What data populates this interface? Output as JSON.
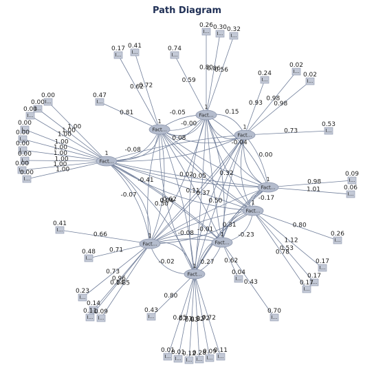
{
  "title": "Path Diagram",
  "factor_label": "Fact...",
  "indicator_label": "I...",
  "factors": [
    {
      "id": "f1",
      "one": "1"
    },
    {
      "id": "f2",
      "one": "1"
    },
    {
      "id": "f3",
      "one": "1"
    },
    {
      "id": "f4",
      "one": "1"
    },
    {
      "id": "f5",
      "one": "1"
    },
    {
      "id": "f6",
      "one": "1"
    },
    {
      "id": "f7",
      "one": "1"
    },
    {
      "id": "f8",
      "one": "1"
    },
    {
      "id": "f9",
      "one": "1"
    }
  ],
  "indicators": [
    {
      "id": "i1",
      "factor": "f1",
      "var": "0.00",
      "load": "1.00"
    },
    {
      "id": "i2",
      "factor": "f1",
      "var": "0.00",
      "load": "1.00"
    },
    {
      "id": "i3",
      "factor": "f1",
      "var": "0.00",
      "load": "1.00"
    },
    {
      "id": "i4",
      "factor": "f1",
      "var": "0.00",
      "load": "1.00"
    },
    {
      "id": "i5",
      "factor": "f1",
      "var": "0.00",
      "load": "1.00"
    },
    {
      "id": "i6",
      "factor": "f1",
      "var": "0.00",
      "load": "1.00"
    },
    {
      "id": "i7",
      "factor": "f1",
      "var": "0.00",
      "load": "1.00"
    },
    {
      "id": "i8",
      "factor": "f1",
      "var": "0.00",
      "load": "1.00"
    },
    {
      "id": "i9",
      "factor": "f1",
      "var": "0.00",
      "load": "1.00"
    },
    {
      "id": "i10",
      "factor": "f2",
      "var": "0.47",
      "load": "0.81"
    },
    {
      "id": "i11",
      "factor": "f2",
      "var": "0.17",
      "load": "0.62"
    },
    {
      "id": "i12",
      "factor": "f2",
      "var": "0.41",
      "load": "0.72"
    },
    {
      "id": "i13",
      "factor": "f3",
      "var": "0.74",
      "load": "0.59"
    },
    {
      "id": "i14",
      "factor": "f3",
      "var": "0.26",
      "load": "0.80"
    },
    {
      "id": "i15",
      "factor": "f3",
      "var": "0.30",
      "load": "0.86"
    },
    {
      "id": "i16",
      "factor": "f3",
      "var": "0.32",
      "load": "0.56"
    },
    {
      "id": "i17",
      "factor": "f4",
      "var": "0.24",
      "load": "0.93"
    },
    {
      "id": "i18",
      "factor": "f4",
      "var": "0.02",
      "load": "0.98"
    },
    {
      "id": "i19",
      "factor": "f4",
      "var": "0.02",
      "load": "0.98"
    },
    {
      "id": "i20",
      "factor": "f4",
      "var": "0.53",
      "load": "0.73"
    },
    {
      "id": "i21",
      "factor": "f5",
      "var": "0.09",
      "load": "0.98"
    },
    {
      "id": "i22",
      "factor": "f5",
      "var": "0.06",
      "load": "1.01"
    },
    {
      "id": "i23",
      "factor": "f6",
      "var": "0.26",
      "load": "0.80"
    },
    {
      "id": "i24",
      "factor": "f6",
      "var": "0.17",
      "load": "1.12"
    },
    {
      "id": "i25",
      "factor": "f6",
      "var": "0.17",
      "load": "0.53"
    },
    {
      "id": "i26",
      "factor": "f6",
      "var": "0.17",
      "load": "0.78"
    },
    {
      "id": "i27",
      "factor": "f7",
      "var": "0.04",
      "load": "0.62"
    },
    {
      "id": "i28",
      "factor": "f7",
      "var": "0.70",
      "load": "0.43"
    },
    {
      "id": "i29",
      "factor": "f8",
      "var": "0.41",
      "load": "0.66"
    },
    {
      "id": "i30",
      "factor": "f8",
      "var": "0.48",
      "load": "0.71"
    },
    {
      "id": "i31",
      "factor": "f8",
      "var": "0.23",
      "load": "0.73"
    },
    {
      "id": "i32",
      "factor": "f8",
      "var": "0.14",
      "load": "0.96"
    },
    {
      "id": "i33",
      "factor": "f8",
      "var": "0.09",
      "load": "0.85"
    },
    {
      "id": "i34",
      "factor": "f8",
      "var": "0.11",
      "load": "0.14"
    },
    {
      "id": "i35",
      "factor": "f9",
      "var": "0.43",
      "load": "0.80"
    },
    {
      "id": "i36",
      "factor": "f9",
      "var": "0.01",
      "load": "0.85"
    },
    {
      "id": "i37",
      "factor": "f9",
      "var": "0.01",
      "load": "0.71"
    },
    {
      "id": "i38",
      "factor": "f9",
      "var": "0.12",
      "load": "0.83"
    },
    {
      "id": "i39",
      "factor": "f9",
      "var": "0.28",
      "load": "0.82"
    },
    {
      "id": "i40",
      "factor": "f9",
      "var": "0.09",
      "load": "0.72"
    },
    {
      "id": "i41",
      "factor": "f9",
      "var": "0.11",
      "load": "0.72"
    }
  ],
  "paths": [
    {
      "from": "f2",
      "to": "f3",
      "value": "-0.05"
    },
    {
      "from": "f2",
      "to": "f3",
      "value": "-0.00"
    },
    {
      "from": "f3",
      "to": "f4",
      "value": "0.15"
    },
    {
      "from": "f1",
      "to": "f2",
      "value": "-0.08"
    },
    {
      "from": "f1",
      "to": "f4",
      "value": "0.08"
    },
    {
      "from": "f1",
      "to": "f5",
      "value": "0.02"
    },
    {
      "from": "f1",
      "to": "f8",
      "value": "-0.07"
    },
    {
      "from": "f1",
      "to": "f6",
      "value": "0.62"
    },
    {
      "from": "f4",
      "to": "f5",
      "value": "0.00"
    },
    {
      "from": "f5",
      "to": "f6",
      "value": "-0.17"
    },
    {
      "from": "f6",
      "to": "f7",
      "value": "-0.23"
    },
    {
      "from": "f8",
      "to": "f9",
      "value": "-0.02"
    },
    {
      "from": "f8",
      "to": "f7",
      "value": "-0.08"
    },
    {
      "from": "f2",
      "to": "f8",
      "value": "-0.41"
    },
    {
      "from": "f3",
      "to": "f7",
      "value": "0.32"
    },
    {
      "from": "f2",
      "to": "f9",
      "value": "0.30"
    },
    {
      "from": "f4",
      "to": "f8",
      "value": "0.37"
    },
    {
      "from": "f5",
      "to": "f9",
      "value": "0.31"
    },
    {
      "from": "f6",
      "to": "f8",
      "value": "-0.01"
    },
    {
      "from": "f3",
      "to": "f9",
      "value": "0.11"
    },
    {
      "from": "f1",
      "to": "f7",
      "value": "0.04"
    },
    {
      "from": "f2",
      "to": "f6",
      "value": "0.05"
    },
    {
      "from": "f3",
      "to": "f5",
      "value": "-0.04"
    },
    {
      "from": "f4",
      "to": "f9",
      "value": "0.50"
    },
    {
      "from": "f7",
      "to": "f9",
      "value": "0.27"
    }
  ]
}
